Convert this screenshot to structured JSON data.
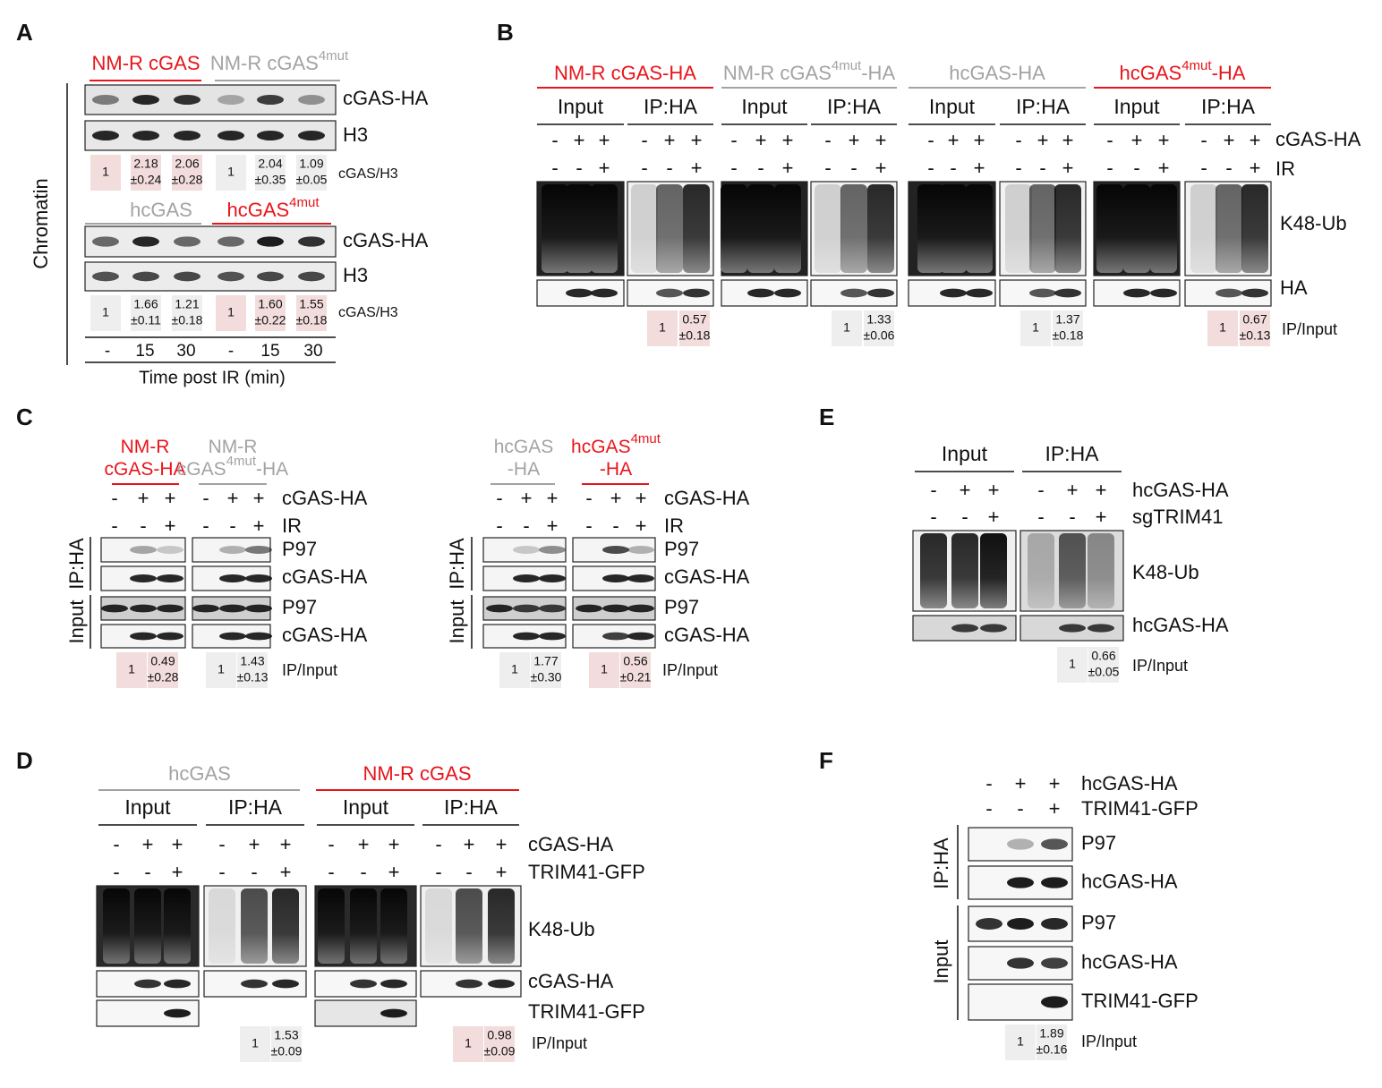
{
  "A": {
    "letter": "A",
    "groups": [
      [
        "NM-R cGAS"
      ],
      [
        "NM-R cGAS",
        "4mut"
      ],
      [
        "hcGAS"
      ],
      [
        "hcGAS",
        "4mut"
      ]
    ],
    "labels": [
      "cGAS-HA",
      "H3",
      "cGAS/H3",
      "cGAS-HA",
      "H3",
      "cGAS/H3"
    ],
    "quants": [
      [
        [
          "1"
        ],
        [
          "2.18",
          "±0.24"
        ],
        [
          "2.06",
          "±0.28"
        ],
        [
          "1"
        ],
        [
          "2.04",
          "±0.35"
        ],
        [
          "1.09",
          "±0.05"
        ]
      ],
      [
        [
          "1"
        ],
        [
          "1.66",
          "±0.11"
        ],
        [
          "1.21",
          "±0.18"
        ],
        [
          "1"
        ],
        [
          "1.60",
          "±0.22"
        ],
        [
          "1.55",
          "±0.18"
        ]
      ]
    ],
    "time": [
      "-",
      "15",
      "30",
      "-",
      "15",
      "30"
    ],
    "xlabel": "Time post IR (min)",
    "side": "Chromatin"
  },
  "B": {
    "letter": "B",
    "groups": [
      [
        "NM-R cGAS-HA"
      ],
      [
        "NM-R cGAS",
        "4mut",
        "-HA"
      ],
      [
        "hcGAS-HA"
      ],
      [
        "hcGAS",
        "4mut",
        "-HA"
      ]
    ],
    "sub": [
      "Input",
      "IP:HA",
      "Input",
      "IP:HA",
      "Input",
      "IP:HA",
      "Input",
      "IP:HA"
    ],
    "signs": [
      [
        "-",
        "+",
        "+",
        "-",
        "+",
        "+",
        "-",
        "+",
        "+",
        "-",
        "+",
        "+",
        "-",
        "+",
        "+",
        "-",
        "+",
        "+",
        "-",
        "+",
        "+",
        "-",
        "+",
        "+"
      ],
      [
        "-",
        "-",
        "+",
        "-",
        "-",
        "+",
        "-",
        "-",
        "+",
        "-",
        "-",
        "+",
        "-",
        "-",
        "+",
        "-",
        "-",
        "+",
        "-",
        "-",
        "+",
        "-",
        "-",
        "+"
      ]
    ],
    "row_labels": [
      "cGAS-HA",
      "IR"
    ],
    "blot_labels": [
      "K48-Ub",
      "HA"
    ],
    "quants": [
      [
        [
          "1"
        ],
        [
          "0.57",
          "±0.18"
        ]
      ],
      [
        [
          "1"
        ],
        [
          "1.33",
          "±0.06"
        ]
      ],
      [
        [
          "1"
        ],
        [
          "1.37",
          "±0.18"
        ]
      ],
      [
        [
          "1"
        ],
        [
          "0.67",
          "±0.13"
        ]
      ]
    ],
    "quant_label": "IP/Input"
  },
  "C": {
    "letter": "C",
    "groups": [
      [
        [
          "NM-R"
        ],
        [
          "cGAS-HA"
        ]
      ],
      [
        [
          "NM-R"
        ],
        [
          "cGAS",
          "4mut",
          "-HA"
        ]
      ],
      [
        [
          "hcGAS"
        ],
        [
          "-HA"
        ]
      ],
      [
        [
          "hcGAS",
          "4mut"
        ],
        [
          "-HA"
        ]
      ]
    ],
    "signs": [
      [
        "-",
        "+",
        "+",
        "-",
        "+",
        "+",
        "-",
        "+",
        "+",
        "-",
        "+",
        "+"
      ],
      [
        "-",
        "-",
        "+",
        "-",
        "-",
        "+",
        "-",
        "-",
        "+",
        "-",
        "-",
        "+"
      ]
    ],
    "row_labels": [
      [
        "cGAS-HA",
        "IR"
      ],
      [
        "cGAS-HA",
        "IR"
      ]
    ],
    "blot_labels": [
      [
        "P97",
        "cGAS-HA",
        "P97",
        "cGAS-HA"
      ],
      [
        "P97",
        "cGAS-HA",
        "P97",
        "cGAS-HA"
      ]
    ],
    "side": [
      [
        "IP:HA",
        "Input"
      ],
      [
        "IP:HA",
        "Input"
      ]
    ],
    "quants": [
      [
        [
          "1"
        ],
        [
          "0.49",
          "±0.28"
        ]
      ],
      [
        [
          "1"
        ],
        [
          "1.43",
          "±0.13"
        ]
      ],
      [
        [
          "1"
        ],
        [
          "1.77",
          "±0.30"
        ]
      ],
      [
        [
          "1"
        ],
        [
          "0.56",
          "±0.21"
        ]
      ]
    ],
    "quant_labels": [
      "IP/Input",
      "IP/Input"
    ]
  },
  "D": {
    "letter": "D",
    "groups": [
      [
        "hcGAS"
      ],
      [
        "NM-R cGAS"
      ]
    ],
    "sub": [
      "Input",
      "IP:HA",
      "Input",
      "IP:HA"
    ],
    "signs": [
      [
        "-",
        "+",
        "+",
        "-",
        "+",
        "+",
        "-",
        "+",
        "+",
        "-",
        "+",
        "+"
      ],
      [
        "-",
        "-",
        "+",
        "-",
        "-",
        "+",
        "-",
        "-",
        "+",
        "-",
        "-",
        "+"
      ]
    ],
    "row_labels": [
      "cGAS-HA",
      "TRIM41-GFP"
    ],
    "blot_labels": [
      "K48-Ub",
      "cGAS-HA",
      "TRIM41-GFP"
    ],
    "quants": [
      [
        [
          "1"
        ],
        [
          "1.53",
          "±0.09"
        ]
      ],
      [
        [
          "1"
        ],
        [
          "0.98",
          "±0.09"
        ]
      ]
    ],
    "quant_label": "IP/Input"
  },
  "E": {
    "letter": "E",
    "sub": [
      "Input",
      "IP:HA"
    ],
    "signs": [
      [
        "-",
        "+",
        "+",
        "-",
        "+",
        "+"
      ],
      [
        "-",
        "-",
        "+",
        "-",
        "-",
        "+"
      ]
    ],
    "row_labels": [
      "hcGAS-HA",
      "sgTRIM41"
    ],
    "blot_labels": [
      "K48-Ub",
      "hcGAS-HA"
    ],
    "quants": [
      [
        [
          "1"
        ],
        [
          "0.66",
          "±0.05"
        ]
      ]
    ],
    "quant_label": "IP/Input"
  },
  "F": {
    "letter": "F",
    "signs": [
      [
        "-",
        "+",
        "+"
      ],
      [
        "-",
        "-",
        "+"
      ]
    ],
    "row_labels": [
      "hcGAS-HA",
      "TRIM41-GFP"
    ],
    "blot_labels": [
      "P97",
      "hcGAS-HA",
      "P97",
      "hcGAS-HA",
      "TRIM41-GFP"
    ],
    "side": [
      "IP:HA",
      "Input"
    ],
    "quants": [
      [
        [
          "1"
        ],
        [
          "1.89",
          "±0.16"
        ]
      ]
    ],
    "quant_label": "IP/Input"
  }
}
